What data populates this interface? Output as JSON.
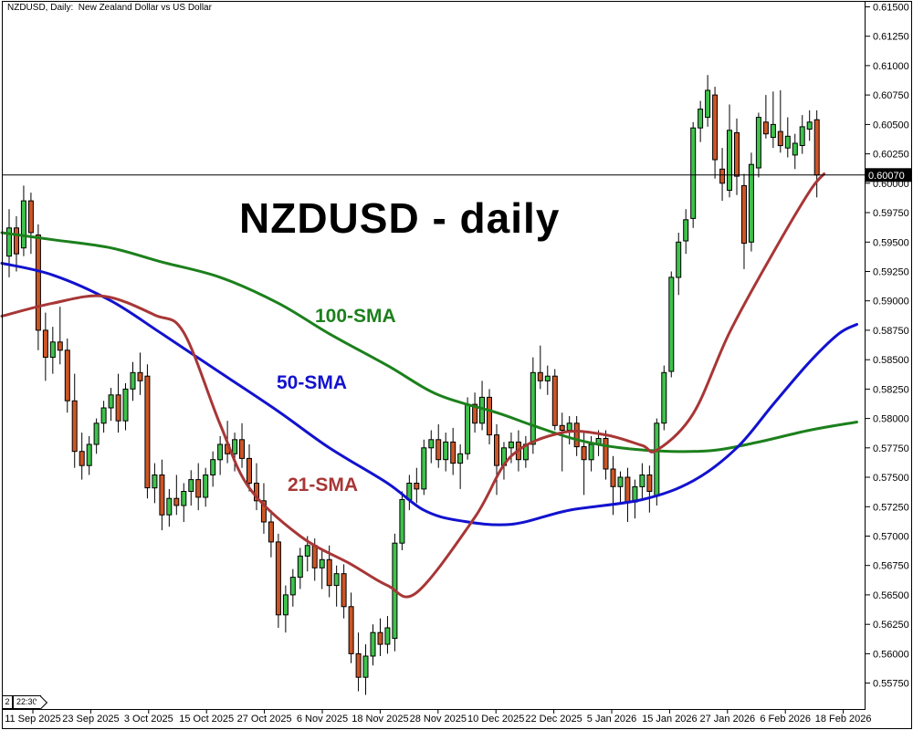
{
  "header": {
    "title": "NZDUSD, Daily:  New Zealand Dollar vs US Dollar"
  },
  "annotations": {
    "main_label": "NZDUSD - daily",
    "sma100_label": "100-SMA",
    "sma50_label": "50-SMA",
    "sma21_label": "21-SMA"
  },
  "status": {
    "bar_shift_badge": "2",
    "session_time": "22:30"
  },
  "price_scale": {
    "current_price_label": "0.60070",
    "labels": [
      "0.61500",
      "0.61250",
      "0.61000",
      "0.60750",
      "0.60500",
      "0.60250",
      "0.60000",
      "0.59750",
      "0.59500",
      "0.59250",
      "0.59000",
      "0.58750",
      "0.58500",
      "0.58250",
      "0.58000",
      "0.57750",
      "0.57500",
      "0.57250",
      "0.57000",
      "0.56750",
      "0.56500",
      "0.56250",
      "0.56000",
      "0.55750"
    ]
  },
  "time_scale": {
    "labels": [
      "11 Sep 2025",
      "23 Sep 2025",
      "3 Oct 2025",
      "15 Oct 2025",
      "27 Oct 2025",
      "6 Nov 2025",
      "18 Nov 2025",
      "28 Nov 2025",
      "10 Dec 2025",
      "22 Dec 2025",
      "5 Jan 2026",
      "15 Jan 2026",
      "27 Jan 2026",
      "6 Feb 2026",
      "18 Feb 2026"
    ]
  },
  "colors": {
    "bull": "#3fc24c",
    "bear": "#cd5526",
    "candle_outline": "#000000",
    "wick": "#000000",
    "sma21": "#a83636",
    "sma50": "#1212cf",
    "sma100": "#1c801c",
    "price_line": "#000000",
    "price_label_bg": "#000000",
    "price_label_fg": "#ffffff",
    "axis_text": "#000000",
    "background": "#ffffff"
  },
  "chart_data": {
    "type": "candlestick",
    "symbol": "NZDUSD",
    "timeframe": "Daily",
    "title": "NZDUSD - daily",
    "grid": false,
    "legend": false,
    "ylim": [
      0.55522,
      0.61558
    ],
    "current_price": 0.6007,
    "candles": [
      [
        0.5938,
        0.5978,
        0.592,
        0.5962
      ],
      [
        0.5962,
        0.5972,
        0.5925,
        0.594
      ],
      [
        0.5945,
        0.5998,
        0.5938,
        0.5985
      ],
      [
        0.5985,
        0.5992,
        0.594,
        0.5958
      ],
      [
        0.5956,
        0.5965,
        0.5858,
        0.5875
      ],
      [
        0.5875,
        0.589,
        0.5832,
        0.5852
      ],
      [
        0.5852,
        0.5878,
        0.5838,
        0.5865
      ],
      [
        0.5865,
        0.5895,
        0.5846,
        0.5858
      ],
      [
        0.5858,
        0.5868,
        0.5805,
        0.5815
      ],
      [
        0.5815,
        0.5838,
        0.5758,
        0.5772
      ],
      [
        0.5772,
        0.5788,
        0.5748,
        0.576
      ],
      [
        0.576,
        0.5785,
        0.5752,
        0.5778
      ],
      [
        0.5778,
        0.58,
        0.577,
        0.5796
      ],
      [
        0.5796,
        0.5815,
        0.5788,
        0.5809
      ],
      [
        0.5809,
        0.5826,
        0.5798,
        0.582
      ],
      [
        0.582,
        0.5838,
        0.5788,
        0.5798
      ],
      [
        0.5798,
        0.583,
        0.579,
        0.5825
      ],
      [
        0.5825,
        0.5848,
        0.5815,
        0.5839
      ],
      [
        0.5839,
        0.5856,
        0.582,
        0.5832
      ],
      [
        0.5836,
        0.5846,
        0.5732,
        0.5741
      ],
      [
        0.5741,
        0.5762,
        0.5728,
        0.5752
      ],
      [
        0.5752,
        0.5765,
        0.5705,
        0.5718
      ],
      [
        0.5718,
        0.574,
        0.5708,
        0.5732
      ],
      [
        0.5732,
        0.5752,
        0.5718,
        0.5726
      ],
      [
        0.5726,
        0.5745,
        0.5712,
        0.5738
      ],
      [
        0.5738,
        0.5756,
        0.5726,
        0.5748
      ],
      [
        0.5748,
        0.5762,
        0.5722,
        0.5733
      ],
      [
        0.5733,
        0.5758,
        0.5725,
        0.5752
      ],
      [
        0.5752,
        0.5772,
        0.5742,
        0.5765
      ],
      [
        0.5765,
        0.5785,
        0.5752,
        0.5778
      ],
      [
        0.5778,
        0.5798,
        0.5762,
        0.577
      ],
      [
        0.577,
        0.5788,
        0.5755,
        0.5782
      ],
      [
        0.5782,
        0.5796,
        0.5758,
        0.5766
      ],
      [
        0.5766,
        0.5778,
        0.5738,
        0.5745
      ],
      [
        0.5745,
        0.5762,
        0.5722,
        0.573
      ],
      [
        0.573,
        0.5745,
        0.5702,
        0.5712
      ],
      [
        0.5712,
        0.5722,
        0.5682,
        0.5695
      ],
      [
        0.5695,
        0.5702,
        0.5622,
        0.5633
      ],
      [
        0.5633,
        0.5658,
        0.5618,
        0.565
      ],
      [
        0.565,
        0.5672,
        0.564,
        0.5665
      ],
      [
        0.5665,
        0.569,
        0.5655,
        0.5683
      ],
      [
        0.5683,
        0.57,
        0.567,
        0.5692
      ],
      [
        0.5692,
        0.5698,
        0.5662,
        0.5673
      ],
      [
        0.5673,
        0.5688,
        0.5655,
        0.568
      ],
      [
        0.568,
        0.5692,
        0.5648,
        0.5658
      ],
      [
        0.5658,
        0.5675,
        0.564,
        0.5668
      ],
      [
        0.5668,
        0.5676,
        0.563,
        0.564
      ],
      [
        0.564,
        0.5652,
        0.5592,
        0.56
      ],
      [
        0.56,
        0.5618,
        0.5568,
        0.558
      ],
      [
        0.558,
        0.5608,
        0.5565,
        0.5598
      ],
      [
        0.5598,
        0.5625,
        0.559,
        0.5618
      ],
      [
        0.5618,
        0.563,
        0.5598,
        0.5608
      ],
      [
        0.5608,
        0.5632,
        0.56,
        0.5622
      ],
      [
        0.5613,
        0.5702,
        0.5602,
        0.5694
      ],
      [
        0.5694,
        0.5738,
        0.5688,
        0.5731
      ],
      [
        0.5731,
        0.5752,
        0.5722,
        0.5745
      ],
      [
        0.5745,
        0.5758,
        0.5728,
        0.574
      ],
      [
        0.574,
        0.5782,
        0.5735,
        0.5775
      ],
      [
        0.5775,
        0.579,
        0.5762,
        0.5782
      ],
      [
        0.5782,
        0.5795,
        0.5758,
        0.5765
      ],
      [
        0.5765,
        0.5788,
        0.5755,
        0.578
      ],
      [
        0.578,
        0.5792,
        0.5752,
        0.5762
      ],
      [
        0.5762,
        0.5778,
        0.574,
        0.577
      ],
      [
        0.577,
        0.5818,
        0.5765,
        0.5812
      ],
      [
        0.5812,
        0.5822,
        0.5788,
        0.5796
      ],
      [
        0.5796,
        0.5832,
        0.579,
        0.5818
      ],
      [
        0.5818,
        0.5825,
        0.5778,
        0.5786
      ],
      [
        0.5786,
        0.5795,
        0.5735,
        0.576
      ],
      [
        0.576,
        0.578,
        0.5748,
        0.5775
      ],
      [
        0.5775,
        0.5788,
        0.5762,
        0.578
      ],
      [
        0.578,
        0.579,
        0.5755,
        0.5765
      ],
      [
        0.5765,
        0.5785,
        0.5758,
        0.5778
      ],
      [
        0.5778,
        0.5852,
        0.577,
        0.5839
      ],
      [
        0.5839,
        0.5862,
        0.5825,
        0.5832
      ],
      [
        0.5832,
        0.5845,
        0.582,
        0.5836
      ],
      [
        0.5836,
        0.5842,
        0.579,
        0.5794
      ],
      [
        0.5794,
        0.5805,
        0.5755,
        0.579
      ],
      [
        0.579,
        0.5802,
        0.5778,
        0.5796
      ],
      [
        0.5796,
        0.5802,
        0.5768,
        0.5776
      ],
      [
        0.5776,
        0.5788,
        0.5735,
        0.5765
      ],
      [
        0.5765,
        0.5785,
        0.5755,
        0.5778
      ],
      [
        0.5778,
        0.579,
        0.5768,
        0.5783
      ],
      [
        0.5783,
        0.579,
        0.5748,
        0.5757
      ],
      [
        0.5757,
        0.5768,
        0.5718,
        0.5742
      ],
      [
        0.5742,
        0.5755,
        0.5728,
        0.575
      ],
      [
        0.575,
        0.5758,
        0.5712,
        0.5729
      ],
      [
        0.5729,
        0.5748,
        0.5715,
        0.5742
      ],
      [
        0.5742,
        0.5762,
        0.573,
        0.5752
      ],
      [
        0.5752,
        0.576,
        0.572,
        0.5738
      ],
      [
        0.5734,
        0.58,
        0.5726,
        0.5796
      ],
      [
        0.5796,
        0.5845,
        0.579,
        0.5839
      ],
      [
        0.584,
        0.5925,
        0.5835,
        0.592
      ],
      [
        0.592,
        0.5958,
        0.5905,
        0.595
      ],
      [
        0.5951,
        0.5978,
        0.594,
        0.5969
      ],
      [
        0.597,
        0.6052,
        0.5962,
        0.6047
      ],
      [
        0.6047,
        0.607,
        0.6035,
        0.6063
      ],
      [
        0.6056,
        0.6092,
        0.6048,
        0.6079
      ],
      [
        0.6075,
        0.6082,
        0.6004,
        0.602
      ],
      [
        0.6012,
        0.603,
        0.5985,
        0.6
      ],
      [
        0.5994,
        0.6067,
        0.5988,
        0.6045
      ],
      [
        0.6043,
        0.6055,
        0.599,
        0.6006
      ],
      [
        0.5998,
        0.6008,
        0.5927,
        0.5949
      ],
      [
        0.595,
        0.6026,
        0.5942,
        0.6016
      ],
      [
        0.6013,
        0.606,
        0.6005,
        0.6056
      ],
      [
        0.6052,
        0.6075,
        0.6038,
        0.6042
      ],
      [
        0.6039,
        0.6078,
        0.603,
        0.605
      ],
      [
        0.6044,
        0.6079,
        0.6026,
        0.6032
      ],
      [
        0.603,
        0.6056,
        0.6022,
        0.604
      ],
      [
        0.6024,
        0.6042,
        0.6012,
        0.6034
      ],
      [
        0.6032,
        0.6058,
        0.6025,
        0.6048
      ],
      [
        0.6046,
        0.6062,
        0.6036,
        0.6052
      ],
      [
        0.6054,
        0.6062,
        0.5988,
        0.6007
      ]
    ],
    "overlays": [
      {
        "name": "100-SMA",
        "period": 100,
        "color": "#1c801c",
        "points": [
          [
            -1,
            0.5958
          ],
          [
            6,
            0.5952
          ],
          [
            14,
            0.5945
          ],
          [
            21,
            0.5933
          ],
          [
            29,
            0.592
          ],
          [
            37,
            0.5898
          ],
          [
            44,
            0.5872
          ],
          [
            52,
            0.5845
          ],
          [
            59,
            0.582
          ],
          [
            67,
            0.5805
          ],
          [
            72,
            0.5794
          ],
          [
            78,
            0.5782
          ],
          [
            84,
            0.5775
          ],
          [
            91,
            0.5772
          ],
          [
            97,
            0.5773
          ],
          [
            103,
            0.578
          ],
          [
            110,
            0.579
          ],
          [
            116.5,
            0.5797
          ]
        ]
      },
      {
        "name": "50-SMA",
        "period": 50,
        "color": "#1212cf",
        "points": [
          [
            -1,
            0.5932
          ],
          [
            6,
            0.5922
          ],
          [
            14,
            0.59
          ],
          [
            21,
            0.5872
          ],
          [
            29,
            0.5839
          ],
          [
            37,
            0.5806
          ],
          [
            44,
            0.5775
          ],
          [
            52,
            0.5745
          ],
          [
            57,
            0.5722
          ],
          [
            62,
            0.5713
          ],
          [
            69,
            0.571
          ],
          [
            77,
            0.5722
          ],
          [
            87,
            0.5731
          ],
          [
            94,
            0.5747
          ],
          [
            100,
            0.5775
          ],
          [
            105,
            0.5812
          ],
          [
            110,
            0.5848
          ],
          [
            114,
            0.5872
          ],
          [
            116.5,
            0.588
          ]
        ]
      },
      {
        "name": "21-SMA",
        "period": 21,
        "color": "#a83636",
        "points": [
          [
            -1,
            0.5887
          ],
          [
            6,
            0.5898
          ],
          [
            13,
            0.5904
          ],
          [
            20,
            0.5888
          ],
          [
            24,
            0.5873
          ],
          [
            29,
            0.5795
          ],
          [
            33,
            0.5741
          ],
          [
            40,
            0.57
          ],
          [
            47,
            0.5676
          ],
          [
            52,
            0.5658
          ],
          [
            56,
            0.5652
          ],
          [
            64,
            0.5716
          ],
          [
            69,
            0.5768
          ],
          [
            76,
            0.5788
          ],
          [
            82,
            0.5786
          ],
          [
            87,
            0.5777
          ],
          [
            89,
            0.5773
          ],
          [
            94,
            0.5804
          ],
          [
            99,
            0.5873
          ],
          [
            105,
            0.5941
          ],
          [
            110,
            0.5993
          ],
          [
            112,
            0.6008
          ]
        ]
      }
    ]
  }
}
